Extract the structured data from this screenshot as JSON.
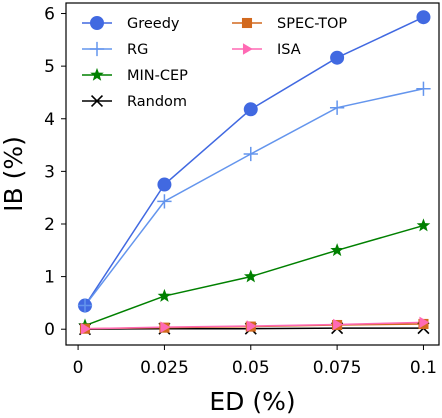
{
  "chart_data": {
    "type": "line",
    "xlabel": "ED (%)",
    "ylabel": "IB (%)",
    "x": [
      0.002,
      0.025,
      0.05,
      0.075,
      0.1
    ],
    "x_ticks": [
      0,
      0.025,
      0.05,
      0.075,
      0.1
    ],
    "x_tick_labels": [
      "0",
      "0.025",
      "0.05",
      "0.075",
      "0.1"
    ],
    "y_ticks": [
      0,
      1,
      2,
      3,
      4,
      5,
      6
    ],
    "y_tick_labels": [
      "0",
      "1",
      "2",
      "3",
      "4",
      "5",
      "6"
    ],
    "xlim": [
      -0.0035,
      0.1045
    ],
    "ylim": [
      -0.3,
      6.2
    ],
    "grid": false,
    "legend": "upper-left, two columns",
    "series": [
      {
        "name": "Greedy",
        "color": "#4169e1",
        "marker": "circle",
        "values": [
          0.45,
          2.75,
          4.18,
          5.16,
          5.93
        ]
      },
      {
        "name": "RG",
        "color": "#6495ed",
        "marker": "plus",
        "values": [
          0.45,
          2.43,
          3.33,
          4.21,
          4.57
        ]
      },
      {
        "name": "MIN-CEP",
        "color": "#008000",
        "marker": "star",
        "values": [
          0.07,
          0.63,
          1.0,
          1.5,
          1.97
        ]
      },
      {
        "name": "Random",
        "color": "#000000",
        "marker": "x",
        "values": [
          0.0,
          0.01,
          0.01,
          0.02,
          0.02
        ]
      },
      {
        "name": "SPEC-TOP",
        "color": "#d2691e",
        "marker": "square",
        "values": [
          0.01,
          0.03,
          0.05,
          0.08,
          0.1
        ]
      },
      {
        "name": "ISA",
        "color": "#ff69b4",
        "marker": "triangle-right",
        "values": [
          0.01,
          0.04,
          0.06,
          0.09,
          0.13
        ]
      }
    ]
  }
}
